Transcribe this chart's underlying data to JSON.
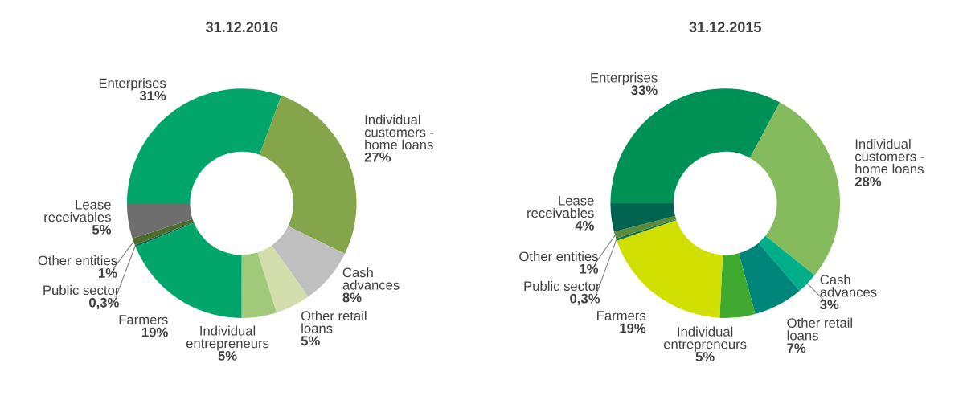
{
  "chart_data": [
    {
      "type": "donut",
      "title": "31.12.2016",
      "categories": [
        "Enterprises",
        "Individual\ncustomers -\nhome loans",
        "Cash\nadvances",
        "Other retail\nloans",
        "Individual\nentrepreneurs",
        "Farmers",
        "Public sector",
        "Other entities",
        "Lease\nreceivables"
      ],
      "values": [
        31,
        27,
        8,
        5,
        5,
        19,
        0.3,
        1,
        5
      ],
      "value_labels": [
        "31%",
        "27%",
        "8%",
        "5%",
        "5%",
        "19%",
        "0,3%",
        "1%",
        "5%"
      ],
      "colors": [
        "#03a66a",
        "#84a54a",
        "#bfbfbf",
        "#d4deac",
        "#a1c97a",
        "#03a66a",
        "#0b6b4e",
        "#4c6b2c",
        "#6e6e6e"
      ]
    },
    {
      "type": "donut",
      "title": "31.12.2015",
      "categories": [
        "Enterprises",
        "Individual\ncustomers -\nhome loans",
        "Cash\nadvances",
        "Other retail\nloans",
        "Individual\nentrepreneurs",
        "Farmers",
        "Public sector",
        "Other entities",
        "Lease\nreceivables"
      ],
      "values": [
        33,
        28,
        3,
        7,
        5,
        19,
        0.3,
        1,
        4
      ],
      "value_labels": [
        "33%",
        "28%",
        "3%",
        "7%",
        "5%",
        "19%",
        "0,3%",
        "1%",
        "4%"
      ],
      "colors": [
        "#009156",
        "#86bb5d",
        "#00ae8a",
        "#00857a",
        "#40aa30",
        "#d0de00",
        "#0a6e50",
        "#5a8a3a",
        "#006450"
      ]
    }
  ]
}
